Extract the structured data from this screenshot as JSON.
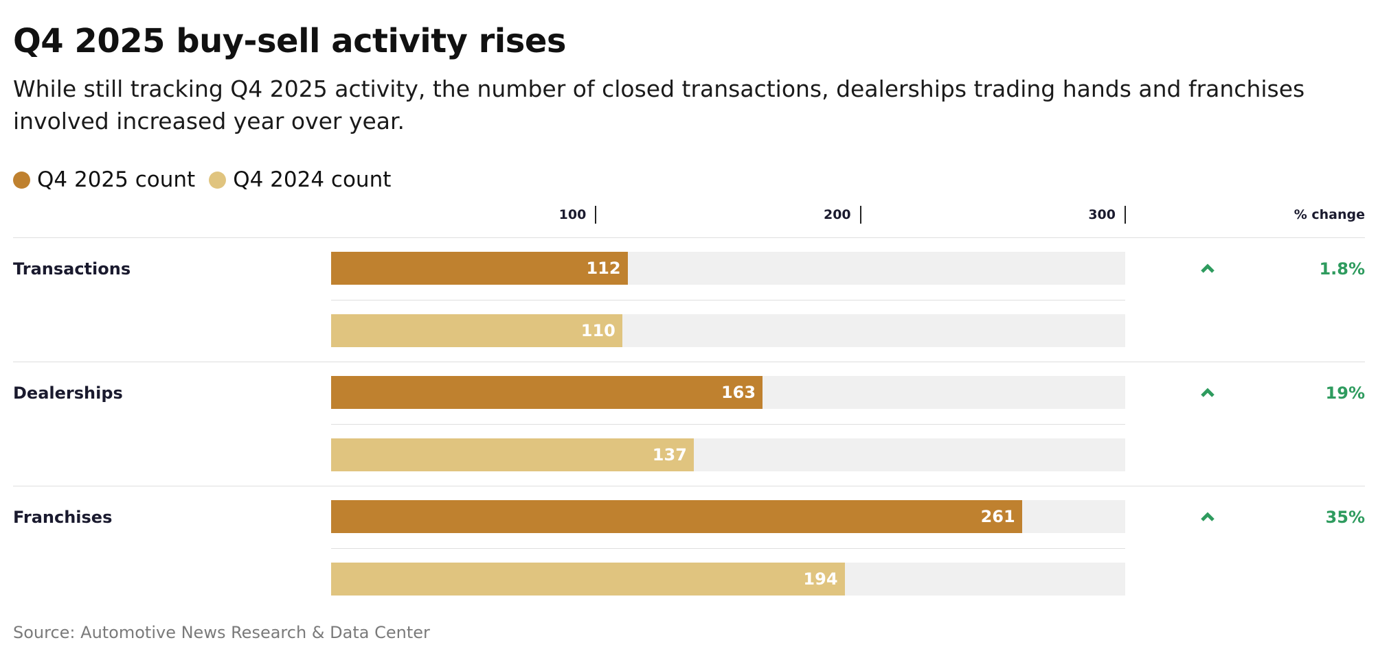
{
  "header": {
    "title": "Q4 2025 buy-sell activity rises",
    "subtitle": "While still tracking Q4 2025 activity, the number of closed transactions, dealerships trading hands and franchises involved increased year over year."
  },
  "legend": {
    "items": [
      {
        "label": "Q4 2025 count",
        "color": "#bf812f"
      },
      {
        "label": "Q4 2024 count",
        "color": "#e0c47f"
      }
    ]
  },
  "columns": {
    "pct_change_header": "% change"
  },
  "footer": {
    "source": "Source: Automotive News Research & Data Center"
  },
  "chart_data": {
    "type": "bar",
    "orientation": "horizontal",
    "title": "Q4 2025 buy-sell activity rises",
    "categories": [
      "Transactions",
      "Dealerships",
      "Franchises"
    ],
    "series": [
      {
        "name": "Q4 2025 count",
        "values": [
          112,
          163,
          261
        ],
        "color": "#bf812f"
      },
      {
        "name": "Q4 2024 count",
        "values": [
          110,
          137,
          194
        ],
        "color": "#e0c47f"
      }
    ],
    "ticks": [
      100,
      200,
      300
    ],
    "tick_labels": [
      "100",
      "200",
      "300"
    ],
    "xlim": [
      0,
      300
    ],
    "pct_change": [
      "1.8%",
      "19%",
      "35%"
    ],
    "change_direction": [
      "up",
      "up",
      "up"
    ],
    "change_color": "#2e9b5e",
    "track_color": "#f0f0f0",
    "legend_position": "top-left"
  }
}
